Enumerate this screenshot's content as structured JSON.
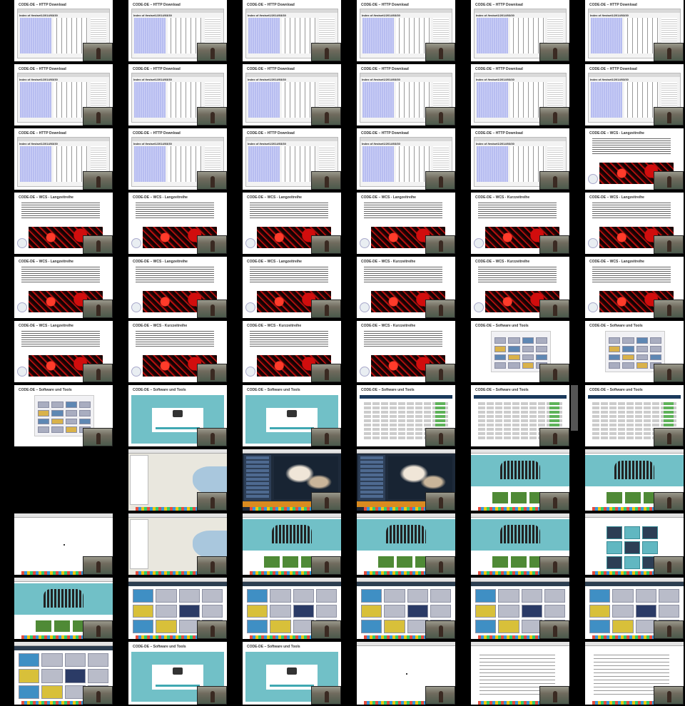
{
  "contact_sheet": {
    "titles": {
      "http": "CODE-DE – HTTP Download",
      "wcs_lang": "CODE-DE – WCS - Langzeitreihe",
      "wcs_kurz": "CODE-DE – WCS - Kurzzeitreihe",
      "tools": "CODE-DE – Software und Tools"
    },
    "http_header": "Index of /testset1/2014/03/30",
    "colors": {
      "background": "#000000",
      "teal": "#71c0c7",
      "red_raster": "#b40f0f",
      "blue_listing": "#b7bdf0"
    },
    "rows": [
      [
        "http",
        "http",
        "http",
        "http",
        "http",
        "http"
      ],
      [
        "http",
        "http",
        "http",
        "http",
        "http",
        "http"
      ],
      [
        "http",
        "http",
        "http",
        "http",
        "http",
        "wcs_lang"
      ],
      [
        "wcs_lang",
        "wcs_lang",
        "wcs_lang",
        "wcs_lang",
        "wcs_kurz",
        "wcs_lang"
      ],
      [
        "wcs_lang",
        "wcs_lang",
        "wcs_lang",
        "wcs_kurz",
        "wcs_kurz",
        "wcs_lang"
      ],
      [
        "wcs_lang",
        "wcs_kurz",
        "wcs_kurz",
        "wcs_kurz",
        "tools_frame",
        "tools_frame"
      ],
      [
        "tools",
        "tools_teal",
        "tools_teal",
        "tools_green",
        "tools_green",
        "tools_green"
      ],
      [
        "none",
        "osm_map",
        "dark_map",
        "dark_map",
        "code_home",
        "code_home"
      ],
      [
        "blank",
        "osm_map",
        "code_home",
        "code_featured",
        "code_featured",
        "icon_tiles"
      ],
      [
        "code_banner",
        "tools_tiles",
        "tools_tiles",
        "tools_tiles",
        "tools_tiles",
        "tools_tiles"
      ],
      [
        "tools_tiles",
        "teal_dialog",
        "teal_dialog",
        "blank",
        "doc",
        "doc"
      ]
    ]
  }
}
